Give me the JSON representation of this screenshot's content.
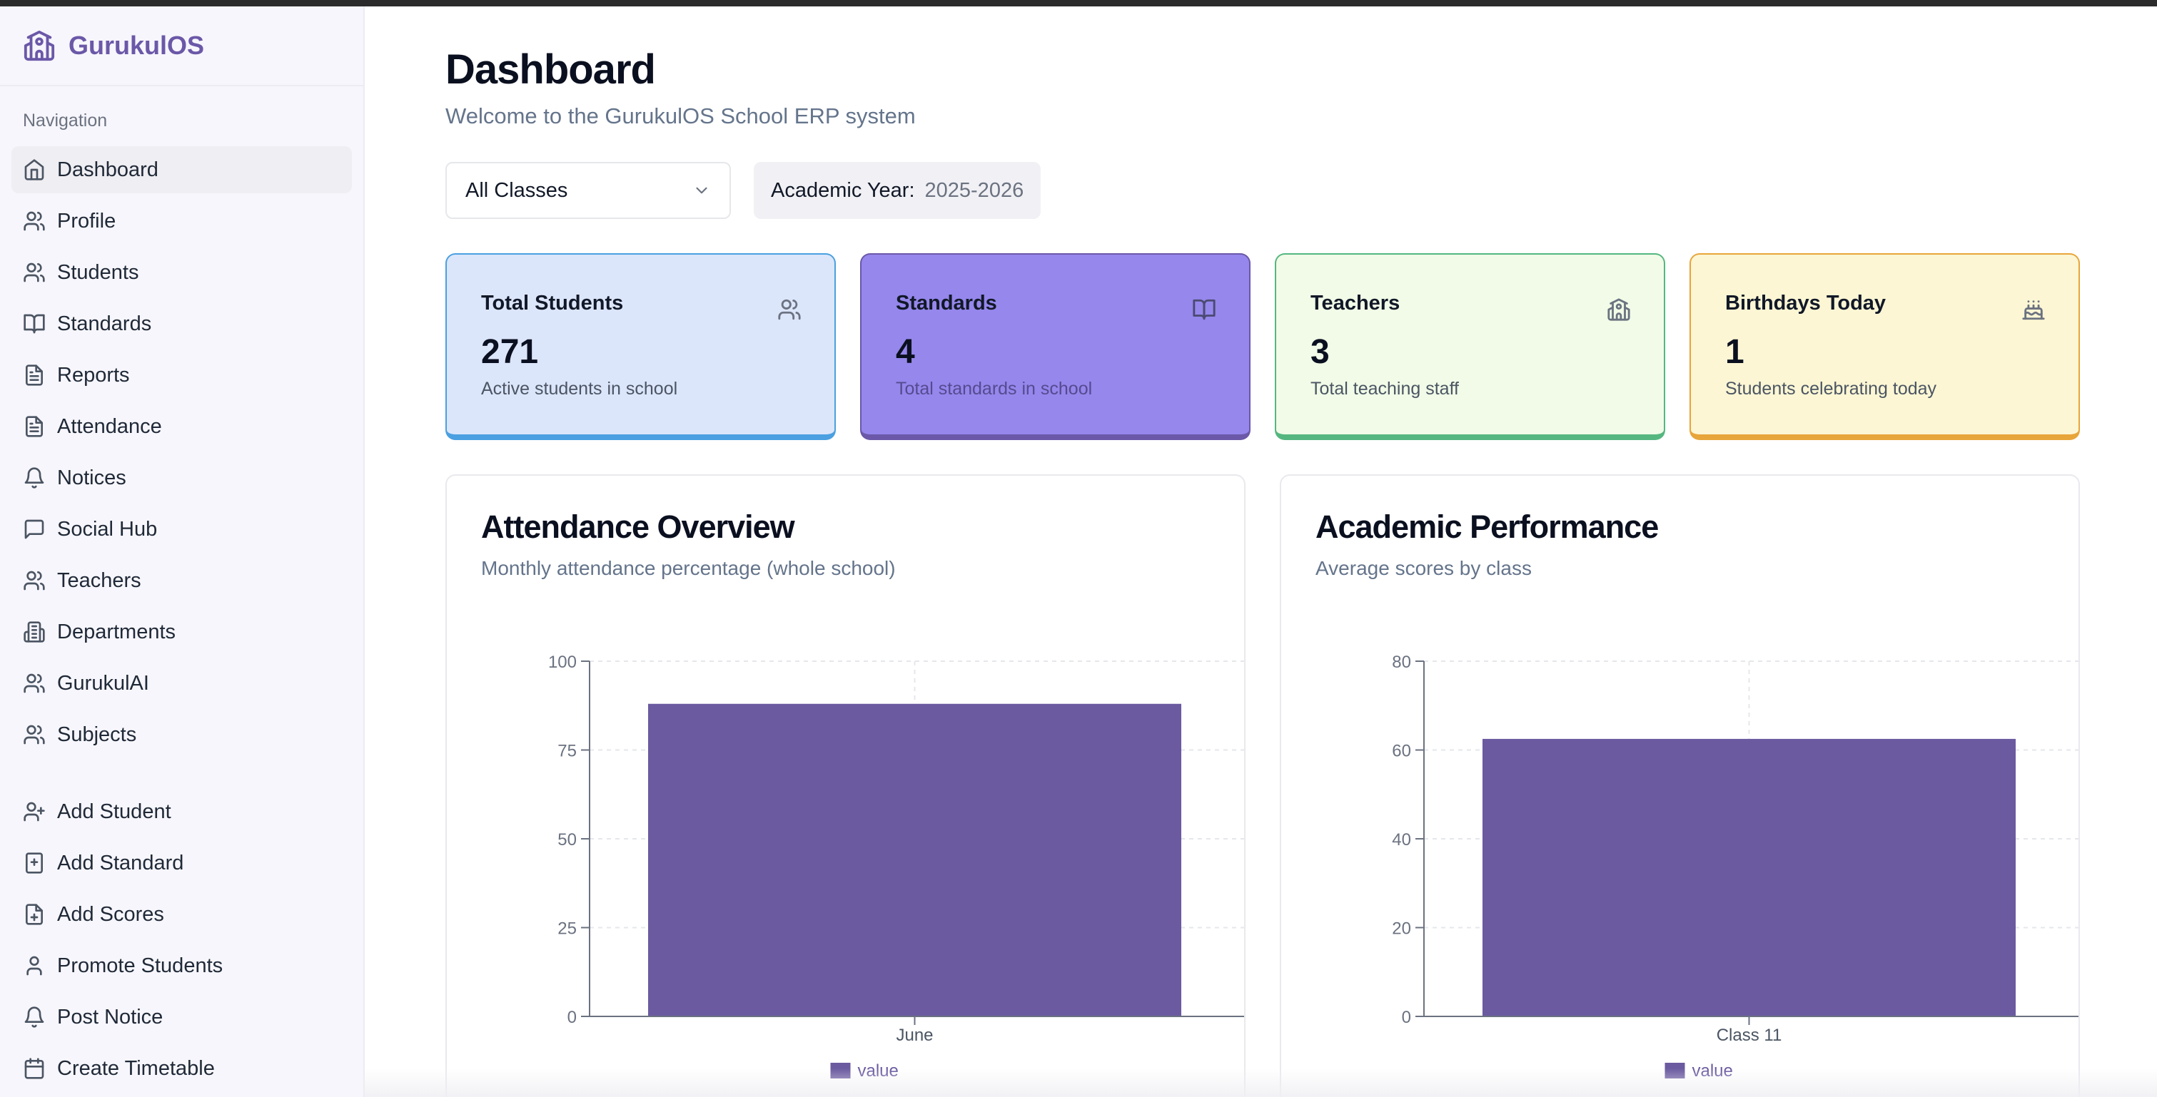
{
  "app": {
    "name": "GurukulOS"
  },
  "sidebar": {
    "heading": "Navigation",
    "items": [
      {
        "label": "Dashboard",
        "icon": "home-icon",
        "active": true
      },
      {
        "label": "Profile",
        "icon": "users-icon"
      },
      {
        "label": "Students",
        "icon": "users-icon"
      },
      {
        "label": "Standards",
        "icon": "book-open-icon"
      },
      {
        "label": "Reports",
        "icon": "file-text-icon"
      },
      {
        "label": "Attendance",
        "icon": "file-text-icon"
      },
      {
        "label": "Notices",
        "icon": "bell-icon"
      },
      {
        "label": "Social Hub",
        "icon": "message-square-icon"
      },
      {
        "label": "Teachers",
        "icon": "users-icon"
      },
      {
        "label": "Departments",
        "icon": "building-icon"
      },
      {
        "label": "GurukulAI",
        "icon": "users-icon"
      },
      {
        "label": "Subjects",
        "icon": "users-icon"
      }
    ],
    "actions": [
      {
        "label": "Add Student",
        "icon": "user-plus-icon"
      },
      {
        "label": "Add Standard",
        "icon": "book-plus-icon"
      },
      {
        "label": "Add Scores",
        "icon": "file-plus-icon"
      },
      {
        "label": "Promote Students",
        "icon": "user-icon"
      },
      {
        "label": "Post Notice",
        "icon": "bell-icon"
      },
      {
        "label": "Create Timetable",
        "icon": "calendar-icon"
      }
    ]
  },
  "header": {
    "title": "Dashboard",
    "subtitle": "Welcome to the GurukulOS School ERP system"
  },
  "filters": {
    "class_select": "All Classes",
    "academic_year_label": "Academic Year:",
    "academic_year_value": "2025-2026"
  },
  "stats": [
    {
      "title": "Total Students",
      "value": "271",
      "desc": "Active students in school",
      "icon": "users-icon",
      "accent": "#4aa0e0"
    },
    {
      "title": "Standards",
      "value": "4",
      "desc": "Total standards in school",
      "icon": "book-open-icon",
      "accent": "#6b58a8"
    },
    {
      "title": "Teachers",
      "value": "3",
      "desc": "Total teaching staff",
      "icon": "school-icon",
      "accent": "#55b77f"
    },
    {
      "title": "Birthdays Today",
      "value": "1",
      "desc": "Students celebrating today",
      "icon": "cake-icon",
      "accent": "#e8a53a"
    }
  ],
  "colors": {
    "bar": "#6b5aa0",
    "brand": "#6b58a8"
  },
  "chart_data": [
    {
      "type": "bar",
      "title": "Attendance Overview",
      "subtitle": "Monthly attendance percentage (whole school)",
      "categories": [
        "June"
      ],
      "series": [
        {
          "name": "value",
          "values": [
            88
          ]
        }
      ],
      "ylim": [
        0,
        100
      ],
      "yticks": [
        "0",
        "25",
        "50",
        "75",
        "100"
      ],
      "grid": true,
      "legend": "bottom"
    },
    {
      "type": "bar",
      "title": "Academic Performance",
      "subtitle": "Average scores by class",
      "categories": [
        "Class 11"
      ],
      "series": [
        {
          "name": "value",
          "values": [
            62.5
          ]
        }
      ],
      "ylim": [
        0,
        80
      ],
      "yticks": [
        "0",
        "20",
        "40",
        "60",
        "80"
      ],
      "grid": true,
      "legend": "bottom"
    }
  ]
}
